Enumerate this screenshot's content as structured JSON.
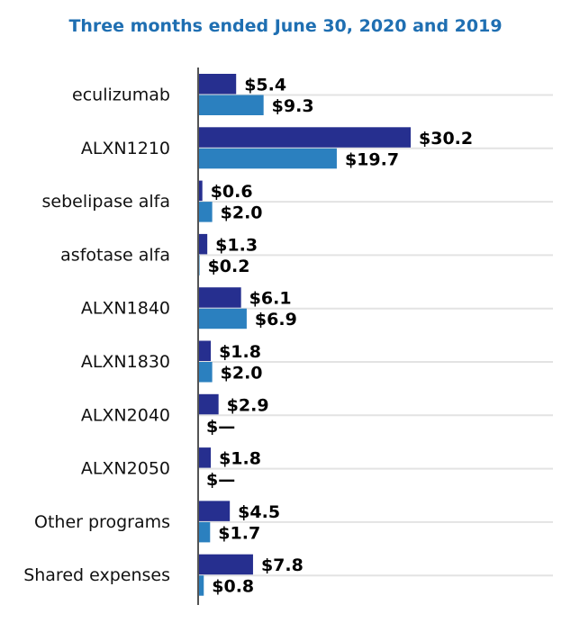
{
  "chart_data": {
    "type": "bar",
    "orientation": "horizontal",
    "title": "Three months ended June 30, 2020 and 2019",
    "categories": [
      "eculizumab",
      "ALXN1210",
      "sebelipase alfa",
      "asfotase alfa",
      "ALXN1840",
      "ALXN1830",
      "ALXN2040",
      "ALXN2050",
      "Other programs",
      "Shared expenses"
    ],
    "series": [
      {
        "name": "2020",
        "color": "#262f8f",
        "values": [
          5.4,
          30.2,
          0.6,
          1.3,
          6.1,
          1.8,
          2.9,
          1.8,
          4.5,
          7.8
        ],
        "labels": [
          "$5.4",
          "$30.2",
          "$0.6",
          "$1.3",
          "$6.1",
          "$1.8",
          "$2.9",
          "$1.8",
          "$4.5",
          "$7.8"
        ]
      },
      {
        "name": "2019",
        "color": "#2b80bf",
        "values": [
          9.3,
          19.7,
          2.0,
          0.2,
          6.9,
          2.0,
          0,
          0,
          1.7,
          0.8
        ],
        "labels": [
          "$9.3",
          "$19.7",
          "$2.0",
          "$0.2",
          "$6.9",
          "$2.0",
          "$—",
          "$—",
          "$1.7",
          "$0.8"
        ]
      }
    ],
    "xlabel": "",
    "ylabel": "",
    "xlim": [
      0,
      32
    ],
    "grid": true,
    "legend": "none"
  }
}
